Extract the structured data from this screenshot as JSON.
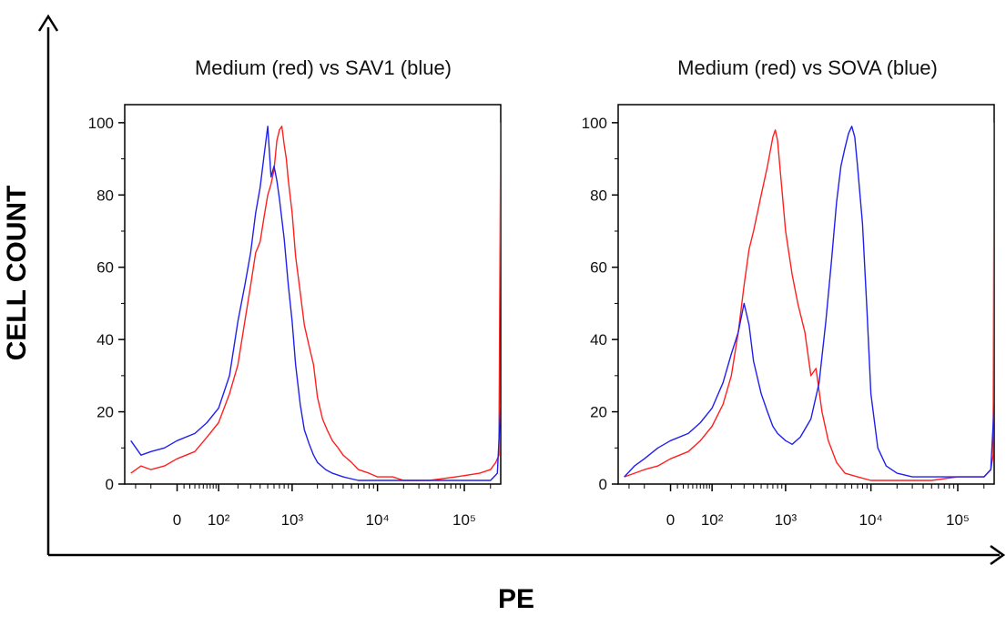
{
  "figure": {
    "y_axis_label": "CELL COUNT",
    "x_axis_label": "PE"
  },
  "chart_data": [
    {
      "type": "line",
      "title": "Medium (red) vs SAV1 (blue)",
      "xlabel": "",
      "ylabel": "",
      "ylim": [
        0,
        105
      ],
      "xscale": "biexponential",
      "y_ticks": [
        0,
        20,
        40,
        60,
        80,
        100
      ],
      "x_ticks": [
        {
          "value": 0,
          "label": "0"
        },
        {
          "value": 100,
          "label": "10²"
        },
        {
          "value": 1000,
          "label": "10³"
        },
        {
          "value": 10000,
          "label": "10⁴"
        },
        {
          "value": 100000,
          "label": "10⁵"
        }
      ],
      "series": [
        {
          "name": "Medium",
          "color": "#ff2020",
          "x": [
            -120,
            -80,
            -50,
            -20,
            0,
            30,
            60,
            100,
            150,
            200,
            250,
            300,
            350,
            400,
            450,
            500,
            550,
            600,
            650,
            700,
            750,
            800,
            850,
            900,
            1000,
            1100,
            1250,
            1400,
            1600,
            1800,
            2000,
            2300,
            2600,
            3000,
            3500,
            4000,
            5000,
            6000,
            8000,
            10000,
            15000,
            20000,
            40000,
            80000,
            150000,
            200000,
            230000,
            250000,
            262000
          ],
          "y": [
            3,
            5,
            4,
            5,
            7,
            9,
            13,
            17,
            25,
            33,
            45,
            55,
            64,
            67,
            74,
            80,
            83,
            87,
            95,
            98,
            99,
            94,
            90,
            84,
            75,
            63,
            53,
            44,
            38,
            33,
            24,
            18,
            15,
            12,
            10,
            8,
            6,
            4,
            3,
            2,
            2,
            1,
            1,
            2,
            3,
            4,
            6,
            8,
            100
          ]
        },
        {
          "name": "SAV1",
          "color": "#2020ee",
          "x": [
            -120,
            -80,
            -50,
            -20,
            0,
            30,
            60,
            100,
            150,
            200,
            250,
            300,
            350,
            400,
            450,
            500,
            550,
            600,
            650,
            700,
            800,
            900,
            1000,
            1100,
            1250,
            1400,
            1600,
            1800,
            2000,
            2500,
            3000,
            4000,
            6000,
            10000,
            20000,
            50000,
            100000,
            200000,
            240000,
            262000
          ],
          "y": [
            12,
            8,
            9,
            10,
            12,
            14,
            17,
            21,
            30,
            45,
            55,
            64,
            75,
            82,
            91,
            99,
            85,
            88,
            84,
            79,
            68,
            55,
            45,
            33,
            22,
            15,
            11,
            8,
            6,
            4,
            3,
            2,
            1,
            1,
            1,
            1,
            1,
            1,
            3,
            22
          ]
        }
      ]
    },
    {
      "type": "line",
      "title": "Medium (red) vs SOVA (blue)",
      "xlabel": "",
      "ylabel": "",
      "ylim": [
        0,
        105
      ],
      "xscale": "biexponential",
      "y_ticks": [
        0,
        20,
        40,
        60,
        80,
        100
      ],
      "x_ticks": [
        {
          "value": 0,
          "label": "0"
        },
        {
          "value": 100,
          "label": "10²"
        },
        {
          "value": 1000,
          "label": "10³"
        },
        {
          "value": 10000,
          "label": "10⁴"
        },
        {
          "value": 100000,
          "label": "10⁵"
        }
      ],
      "series": [
        {
          "name": "Medium",
          "color": "#ff2020",
          "x": [
            -120,
            -80,
            -50,
            -20,
            0,
            30,
            60,
            100,
            150,
            200,
            250,
            300,
            350,
            400,
            500,
            600,
            700,
            750,
            800,
            900,
            1000,
            1200,
            1400,
            1700,
            2000,
            2300,
            2700,
            3200,
            4000,
            5000,
            7000,
            10000,
            20000,
            50000,
            100000,
            200000,
            240000,
            255000,
            262000
          ],
          "y": [
            2,
            3,
            4,
            5,
            7,
            9,
            12,
            16,
            22,
            30,
            42,
            55,
            65,
            70,
            80,
            88,
            96,
            98,
            95,
            82,
            70,
            58,
            50,
            42,
            30,
            32,
            20,
            12,
            6,
            3,
            2,
            1,
            1,
            1,
            2,
            2,
            4,
            8,
            100
          ]
        },
        {
          "name": "SOVA",
          "color": "#2020ee",
          "x": [
            -120,
            -80,
            -50,
            -20,
            0,
            30,
            60,
            100,
            150,
            200,
            250,
            300,
            350,
            400,
            500,
            600,
            700,
            800,
            1000,
            1200,
            1500,
            2000,
            2500,
            3000,
            3500,
            4000,
            4500,
            5000,
            5500,
            6000,
            6500,
            7000,
            8000,
            9000,
            10000,
            12000,
            15000,
            20000,
            30000,
            50000,
            100000,
            200000,
            240000,
            262000
          ],
          "y": [
            2,
            5,
            7,
            10,
            12,
            14,
            17,
            21,
            28,
            36,
            42,
            50,
            44,
            34,
            25,
            20,
            16,
            14,
            12,
            11,
            13,
            18,
            28,
            45,
            62,
            78,
            88,
            93,
            97,
            99,
            96,
            88,
            72,
            48,
            25,
            10,
            5,
            3,
            2,
            2,
            2,
            2,
            4,
            22
          ]
        }
      ]
    }
  ]
}
